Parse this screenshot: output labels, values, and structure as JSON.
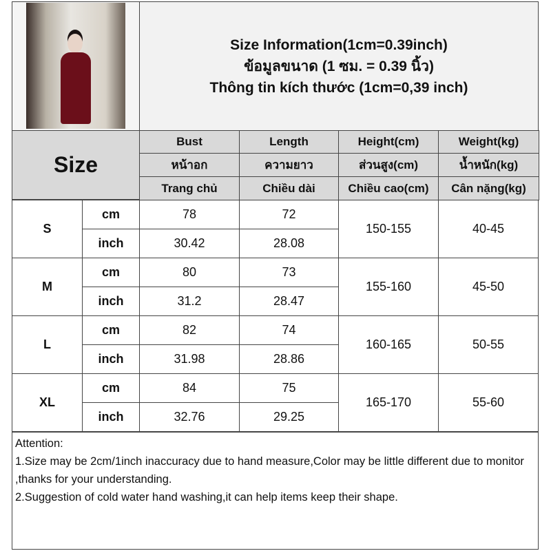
{
  "title": {
    "line1": "Size Information(1cm=0.39inch)",
    "line2": "ข้อมูลขนาด (1 ซม. = 0.39 นิ้ว)",
    "line3": "Thông tin kích thước (1cm=0,39 inch)"
  },
  "header": {
    "size": "Size",
    "columns": [
      [
        "Bust",
        "หน้าอก",
        "Trang chủ"
      ],
      [
        "Length",
        "ความยาว",
        "Chiều dài"
      ],
      [
        "Height(cm)",
        "ส่วนสูง(cm)",
        "Chiều cao(cm)"
      ],
      [
        "Weight(kg)",
        "น้ำหนัก(kg)",
        "Cân nặng(kg)"
      ]
    ]
  },
  "units": {
    "cm": "cm",
    "inch": "inch"
  },
  "rows": [
    {
      "size": "S",
      "cm": [
        "78",
        "72"
      ],
      "inch": [
        "30.42",
        "28.08"
      ],
      "height": "150-155",
      "weight": "40-45"
    },
    {
      "size": "M",
      "cm": [
        "80",
        "73"
      ],
      "inch": [
        "31.2",
        "28.47"
      ],
      "height": "155-160",
      "weight": "45-50"
    },
    {
      "size": "L",
      "cm": [
        "82",
        "74"
      ],
      "inch": [
        "31.98",
        "28.86"
      ],
      "height": "160-165",
      "weight": "50-55"
    },
    {
      "size": "XL",
      "cm": [
        "84",
        "75"
      ],
      "inch": [
        "32.76",
        "29.25"
      ],
      "height": "165-170",
      "weight": "55-60"
    }
  ],
  "notes": [
    "Attention:",
    "1.Size may be 2cm/1inch inaccuracy due to hand measure,Color may be little different due to monitor ,thanks for your understanding.",
    "2.Suggestion of cold water hand washing,it can help items keep their shape."
  ]
}
